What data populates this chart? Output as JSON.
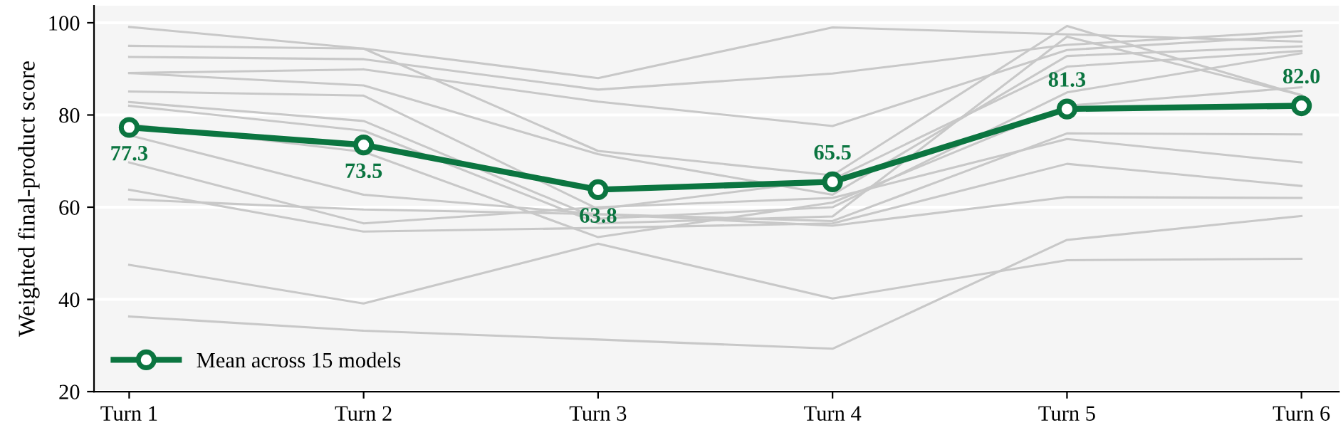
{
  "chart_data": {
    "type": "line",
    "ylabel": "Weighted final-product score",
    "categories": [
      "Turn 1",
      "Turn 2",
      "Turn 3",
      "Turn 4",
      "Turn 5",
      "Turn 6"
    ],
    "ylim": [
      20,
      103.7
    ],
    "yticks": [
      20,
      40,
      60,
      80,
      100
    ],
    "grid": "y",
    "legend": "bottom left",
    "series": [
      {
        "color": "#c8c8c8",
        "values": [
          99.1,
          94.4,
          88.0,
          99.0,
          97.5,
          95.9
        ]
      },
      {
        "color": "#c8c8c8",
        "values": [
          95.0,
          94.4,
          72.2,
          66.9,
          99.3,
          84.3
        ]
      },
      {
        "color": "#c8c8c8",
        "values": [
          92.6,
          92.1,
          85.5,
          89.0,
          95.2,
          98.2
        ]
      },
      {
        "color": "#c8c8c8",
        "values": [
          89.1,
          89.9,
          82.9,
          77.6,
          94.1,
          97.2
        ]
      },
      {
        "color": "#c8c8c8",
        "values": [
          89.1,
          86.4,
          71.5,
          62.7,
          92.8,
          94.9
        ]
      },
      {
        "color": "#c8c8c8",
        "values": [
          85.1,
          84.2,
          59.6,
          66.0,
          90.5,
          93.9
        ]
      },
      {
        "color": "#c8c8c8",
        "values": [
          82.8,
          78.7,
          57.5,
          60.0,
          84.9,
          93.4
        ]
      },
      {
        "color": "#c8c8c8",
        "values": [
          82.0,
          76.6,
          56.5,
          58.0,
          97.0,
          84.3
        ]
      },
      {
        "color": "#c8c8c8",
        "values": [
          78.0,
          72.0,
          53.5,
          61.0,
          82.0,
          86.0
        ]
      },
      {
        "color": "#c8c8c8",
        "values": [
          75.6,
          62.7,
          58.5,
          57.0,
          76.0,
          75.8
        ]
      },
      {
        "color": "#c8c8c8",
        "values": [
          69.7,
          56.5,
          60.0,
          62.0,
          74.8,
          69.7
        ]
      },
      {
        "color": "#c8c8c8",
        "values": [
          63.8,
          54.7,
          55.5,
          56.5,
          69.4,
          64.6
        ]
      },
      {
        "color": "#c8c8c8",
        "values": [
          61.7,
          59.5,
          58.5,
          56.0,
          62.2,
          62.0
        ]
      },
      {
        "color": "#c8c8c8",
        "values": [
          47.5,
          39.1,
          52.1,
          40.2,
          48.5,
          48.8
        ]
      },
      {
        "color": "#c8c8c8",
        "values": [
          36.3,
          33.2,
          31.3,
          29.3,
          52.9,
          58.1
        ]
      },
      {
        "name": "Mean across 15 models",
        "color": "#0b7540",
        "values": [
          77.3,
          73.5,
          63.8,
          65.5,
          81.3,
          82.0
        ],
        "marker": "circle",
        "value_labels": [
          "77.3",
          "73.5",
          "63.8",
          "65.5",
          "81.3",
          "82.0"
        ]
      }
    ]
  }
}
